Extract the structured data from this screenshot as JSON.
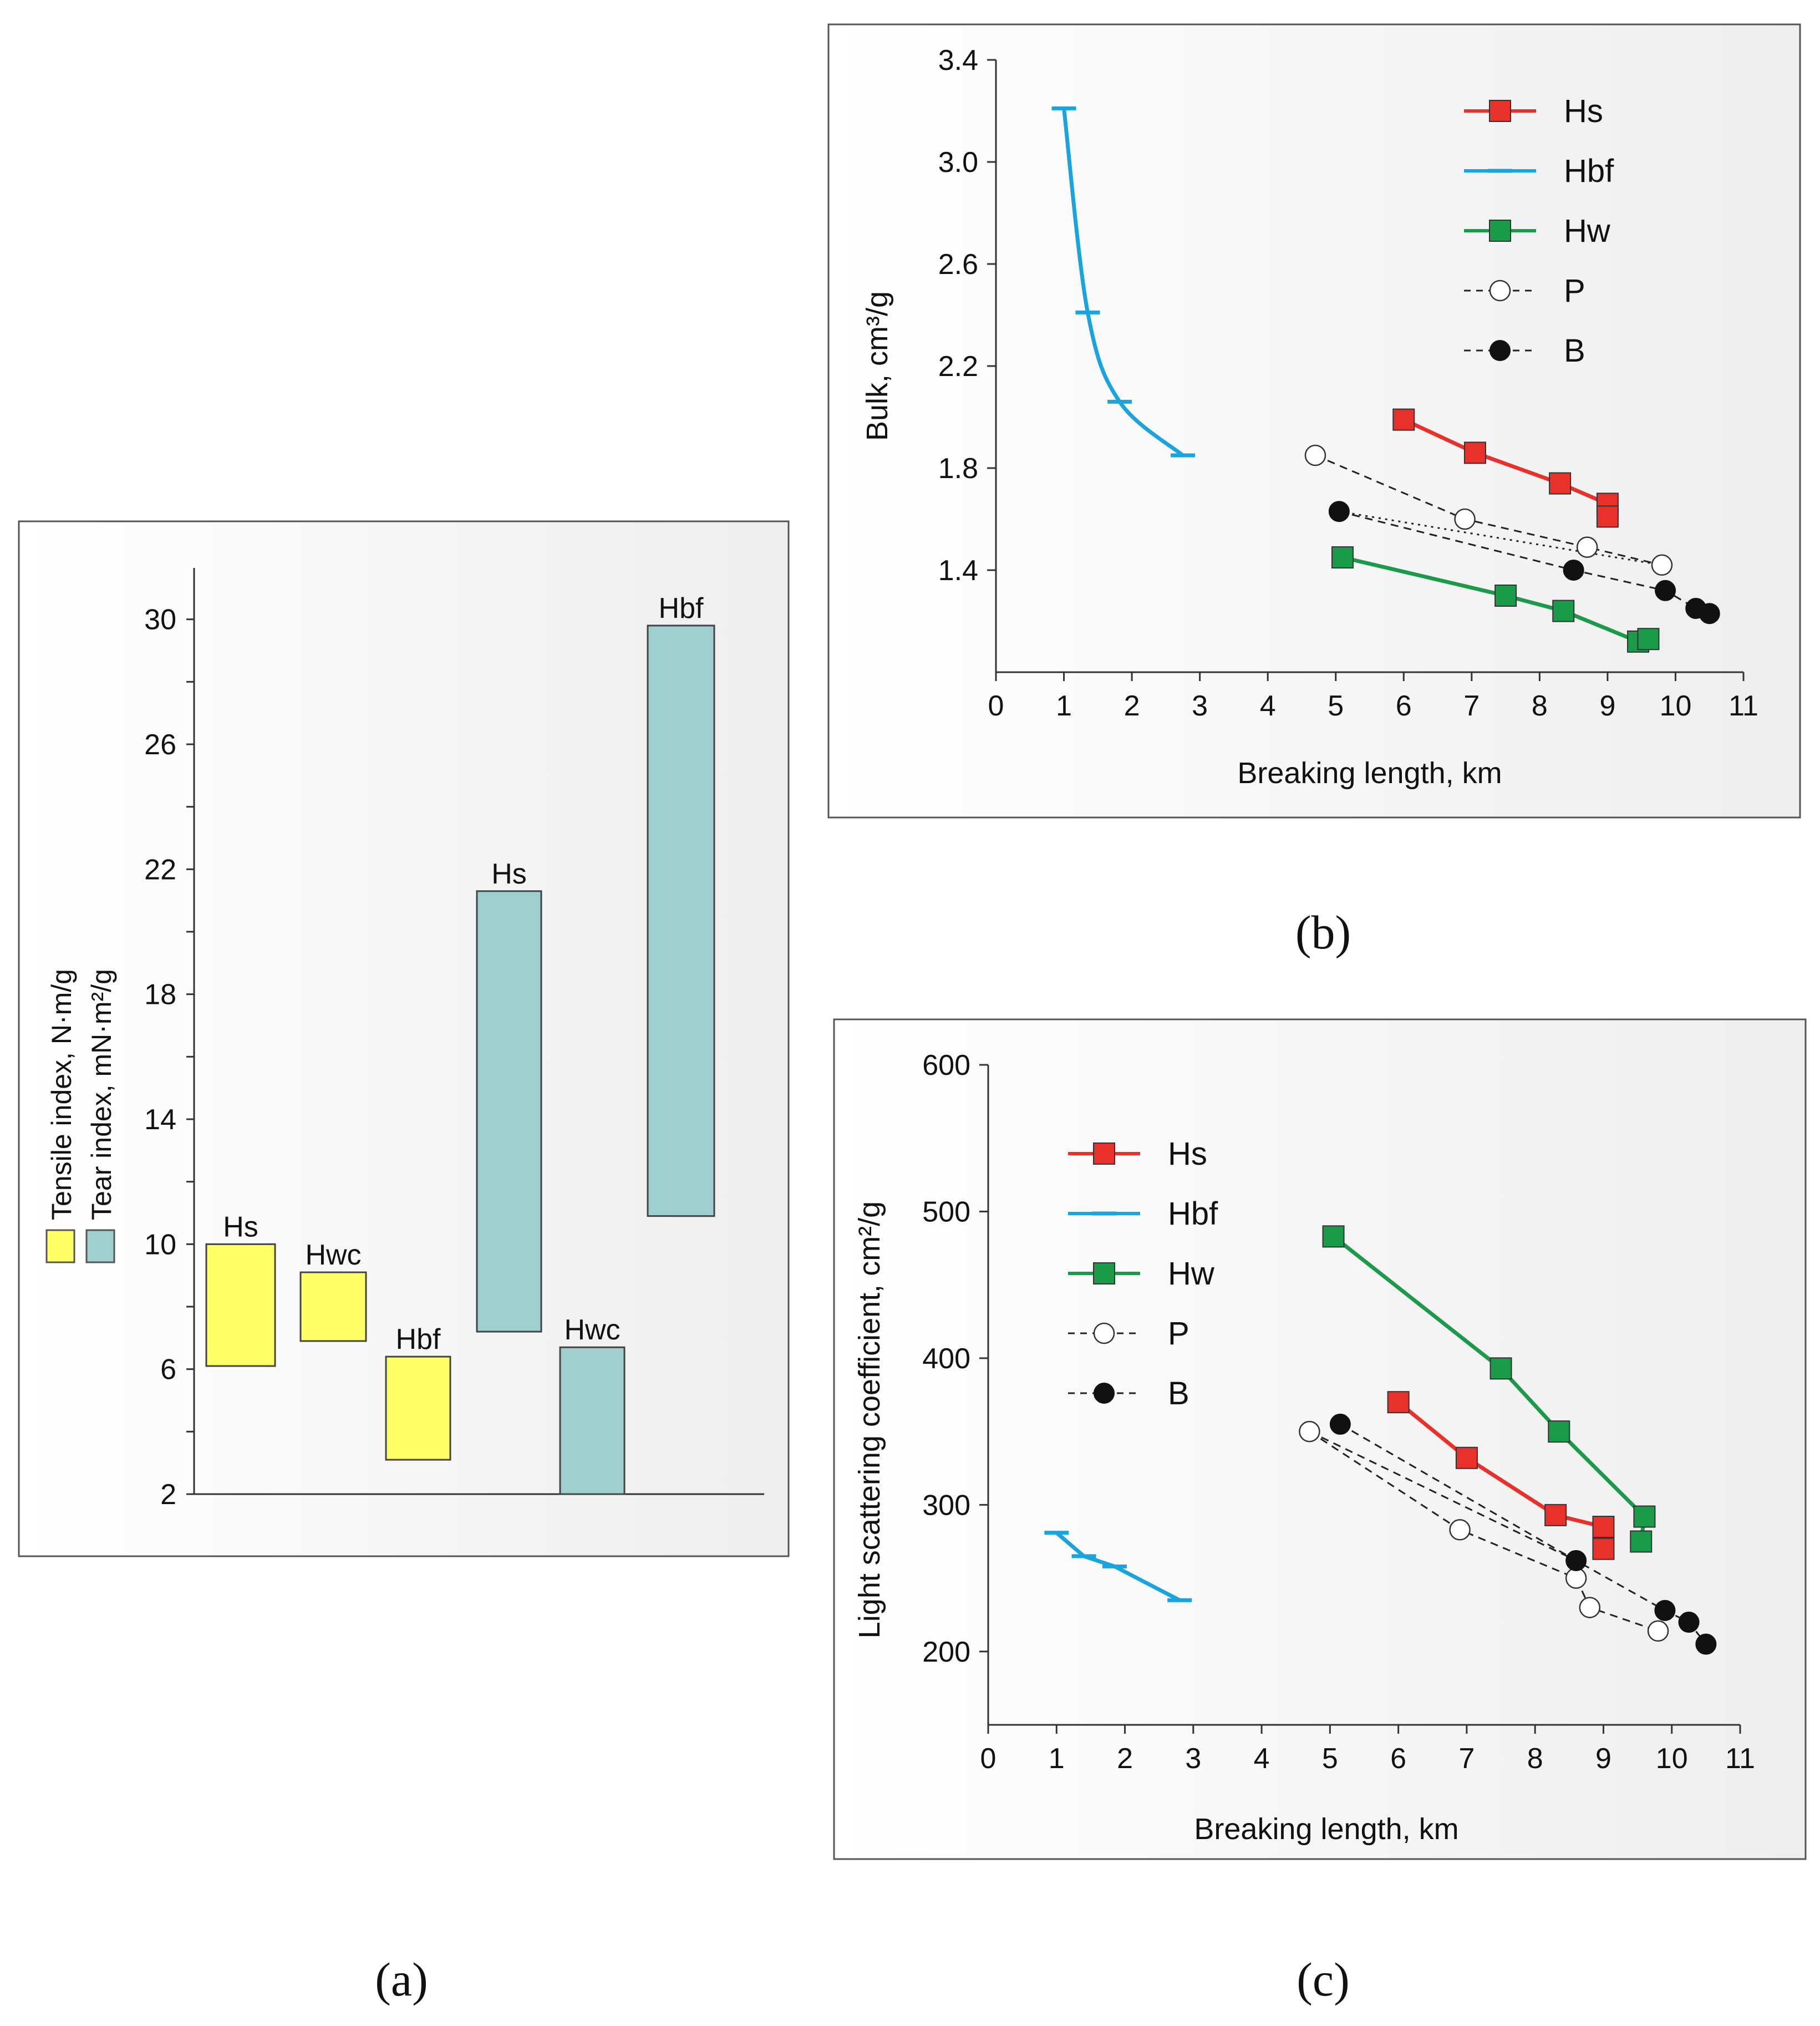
{
  "colors": {
    "panel_fill_light": "#ffffff",
    "panel_fill_dark": "#eeeeee",
    "panel_border": "#555555",
    "tensile_fill": "#ffff66",
    "tear_fill": "#9fcfcf",
    "Hs": "#e8312a",
    "Hbf": "#1aa3dc",
    "Hw": "#1b9a49",
    "P": "#222222",
    "B": "#111111"
  },
  "chart_data": [
    {
      "id": "a",
      "type": "range-bar",
      "caption": "(a)",
      "ylabel_lines": [
        "Tensile index, N·m/g",
        "Tear index, mN·m²/g"
      ],
      "legend": [
        {
          "key": "tensile",
          "label": "Tensile index, N·m/g"
        },
        {
          "key": "tear",
          "label": "Tear index, mN·m²/g"
        }
      ],
      "ylim": [
        2,
        32
      ],
      "yticks": [
        2,
        6,
        10,
        14,
        18,
        22,
        26,
        30
      ],
      "grid": false,
      "bars": [
        {
          "label": "Hs",
          "group": "tensile",
          "low": 6.1,
          "high": 10.0,
          "slot": 0
        },
        {
          "label": "Hwc",
          "group": "tensile",
          "low": 6.9,
          "high": 9.1,
          "slot": 1
        },
        {
          "label": "Hbf",
          "group": "tensile",
          "low": 3.1,
          "high": 6.4,
          "slot": 2
        },
        {
          "label": "Hs",
          "group": "tear",
          "low": 7.2,
          "high": 21.3,
          "slot": 3
        },
        {
          "label": "Hwc",
          "group": "tear",
          "low": 2.0,
          "high": 6.7,
          "slot": 4
        },
        {
          "label": "Hbf",
          "group": "tear",
          "low": 10.9,
          "high": 29.8,
          "slot": 5
        }
      ]
    },
    {
      "id": "b",
      "type": "line",
      "caption": "(b)",
      "xlabel": "Breaking length, km",
      "ylabel": "Bulk, cm³/g",
      "xlim": [
        0,
        11
      ],
      "ylim": [
        1.0,
        3.4
      ],
      "xticks": [
        0,
        1,
        2,
        3,
        4,
        5,
        6,
        7,
        8,
        9,
        10,
        11
      ],
      "yticks": [
        1.4,
        1.8,
        2.2,
        2.6,
        3.0,
        3.4
      ],
      "grid": false,
      "legend_position": "top-right",
      "series": [
        {
          "name": "Hs",
          "marker": "square",
          "style": "solid",
          "x": [
            6.0,
            7.05,
            8.3,
            9.0,
            9.0
          ],
          "y": [
            1.99,
            1.86,
            1.74,
            1.66,
            1.61
          ]
        },
        {
          "name": "Hbf",
          "marker": "dash",
          "style": "curve",
          "x": [
            1.0,
            1.35,
            1.82,
            2.75
          ],
          "y": [
            3.21,
            2.41,
            2.06,
            1.85
          ]
        },
        {
          "name": "Hw",
          "marker": "square",
          "style": "solid",
          "x": [
            5.1,
            7.5,
            8.35,
            9.45,
            9.6
          ],
          "y": [
            1.45,
            1.3,
            1.24,
            1.12,
            1.13
          ]
        },
        {
          "name": "P",
          "marker": "open-circle",
          "style": "dashed",
          "x": [
            4.7,
            6.9,
            8.7,
            9.8
          ],
          "y": [
            1.85,
            1.6,
            1.49,
            1.42
          ]
        },
        {
          "name": "B",
          "marker": "filled-circle",
          "style": "dashed",
          "x": [
            5.05,
            8.5,
            9.85,
            10.3,
            10.5
          ],
          "y": [
            1.63,
            1.4,
            1.32,
            1.25,
            1.23
          ]
        }
      ],
      "extra_lines": [
        {
          "style": "dotted",
          "x": [
            5.05,
            9.8
          ],
          "y": [
            1.63,
            1.42
          ]
        }
      ]
    },
    {
      "id": "c",
      "type": "line",
      "caption": "(c)",
      "xlabel": "Breaking length, km",
      "ylabel": "Light scattering coefficient, cm²/g",
      "xlim": [
        0,
        11
      ],
      "ylim": [
        150,
        600
      ],
      "xticks": [
        0,
        1,
        2,
        3,
        4,
        5,
        6,
        7,
        8,
        9,
        10,
        11
      ],
      "yticks": [
        200,
        300,
        400,
        500,
        600
      ],
      "grid": false,
      "legend_position": "top-left",
      "series": [
        {
          "name": "Hs",
          "marker": "square",
          "style": "solid",
          "x": [
            6.0,
            7.0,
            8.3,
            9.0,
            9.0
          ],
          "y": [
            370,
            332,
            293,
            285,
            270
          ]
        },
        {
          "name": "Hbf",
          "marker": "dash",
          "style": "solid",
          "x": [
            1.0,
            1.4,
            1.85,
            2.8
          ],
          "y": [
            281,
            265,
            258,
            235
          ]
        },
        {
          "name": "Hw",
          "marker": "square",
          "style": "solid",
          "x": [
            5.05,
            7.5,
            8.35,
            9.6,
            9.55
          ],
          "y": [
            483,
            393,
            350,
            292,
            275
          ]
        },
        {
          "name": "P",
          "marker": "open-circle",
          "style": "dashed",
          "x": [
            4.7,
            6.9,
            8.6,
            8.8,
            9.8
          ],
          "y": [
            350,
            283,
            250,
            230,
            214
          ]
        },
        {
          "name": "B",
          "marker": "filled-circle",
          "style": "dashed",
          "x": [
            5.15,
            8.6,
            9.9,
            10.25,
            10.5
          ],
          "y": [
            355,
            262,
            228,
            220,
            205
          ]
        }
      ],
      "extra_lines": [
        {
          "style": "dashed",
          "x": [
            4.7,
            8.6
          ],
          "y": [
            350,
            262
          ]
        }
      ]
    }
  ]
}
